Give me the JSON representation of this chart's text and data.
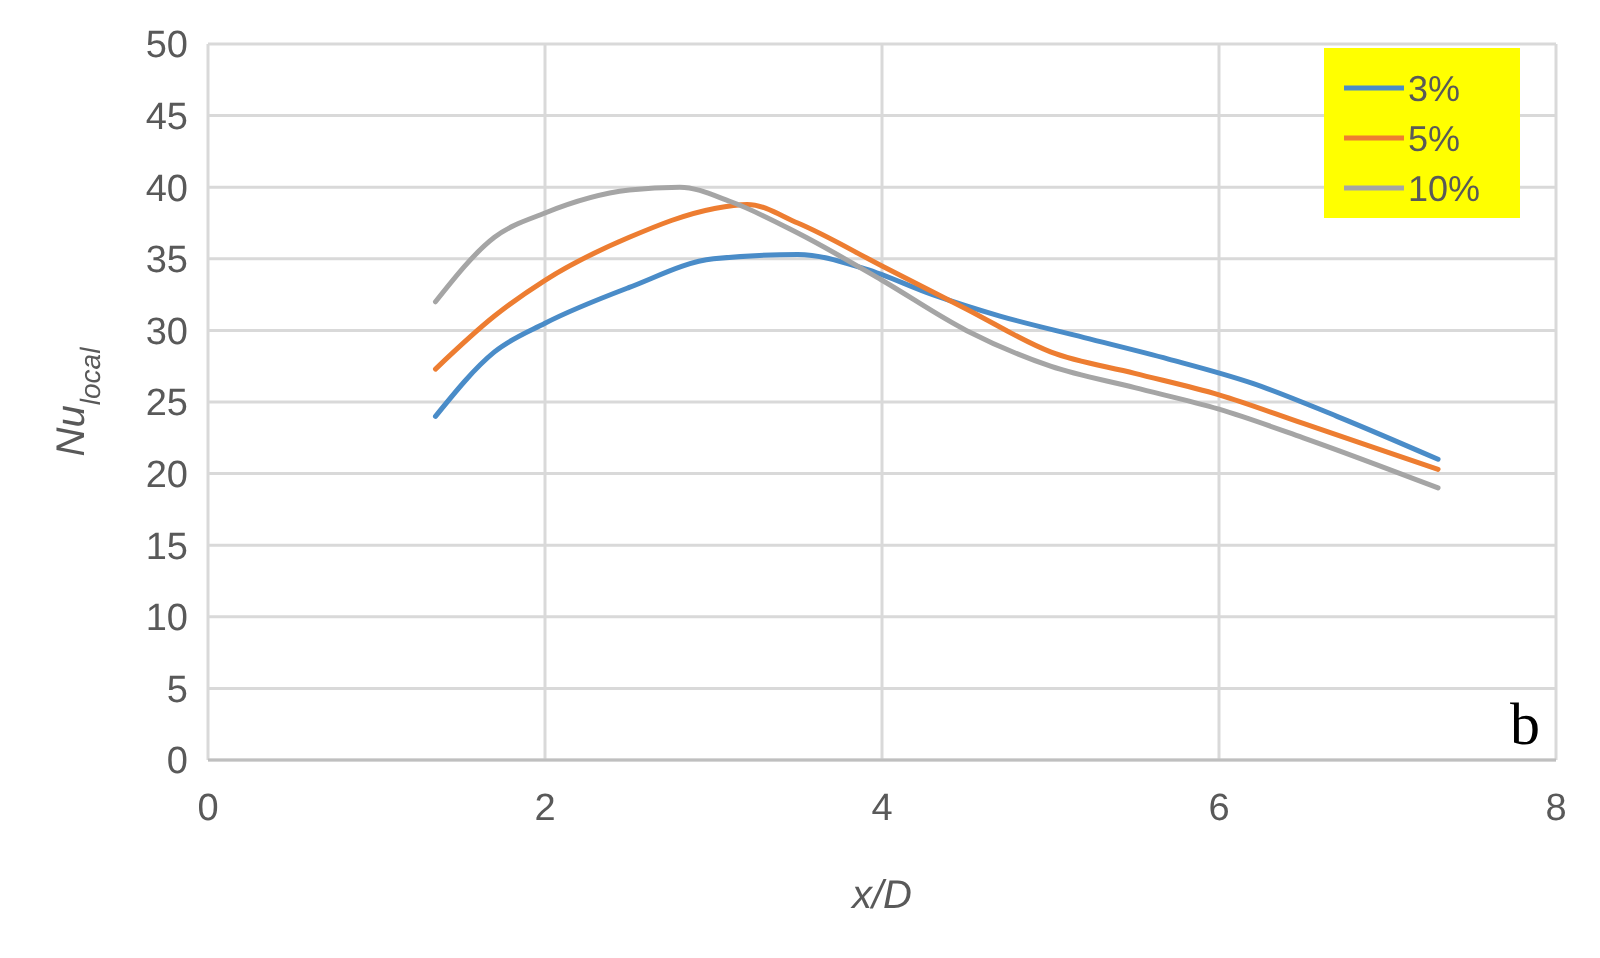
{
  "chart_data": {
    "type": "line",
    "xlabel": "x/D",
    "ylabel": "Nu$_{local}$",
    "xlim": [
      0,
      8
    ],
    "xticks": [
      0,
      2,
      4,
      6,
      8
    ],
    "ylim": [
      0,
      50
    ],
    "yticks": [
      0,
      5,
      10,
      15,
      20,
      25,
      30,
      35,
      40,
      45,
      50
    ],
    "grid": true,
    "legend": "top right",
    "annotations": [
      "b"
    ],
    "series": [
      {
        "name": "3%",
        "color": "#4a8cc8",
        "x": [
          1.35,
          1.7,
          2,
          2.5,
          3,
          3.5,
          3.9,
          4.3,
          4.7,
          5.2,
          5.7,
          6.2,
          6.7,
          7.3
        ],
        "values": [
          24,
          28.5,
          30.5,
          33,
          35,
          35.3,
          34.3,
          32.5,
          31,
          29.5,
          28,
          26.3,
          24,
          21
        ]
      },
      {
        "name": "5%",
        "color": "#ed7d31",
        "x": [
          1.35,
          1.7,
          2,
          2.5,
          3,
          3.2,
          3.5,
          4,
          4.5,
          5,
          5.5,
          6,
          6.5,
          7.3
        ],
        "values": [
          27.3,
          31,
          33.5,
          36.5,
          38.5,
          38.8,
          37.5,
          34.5,
          31.5,
          28.5,
          27,
          25.5,
          23.5,
          20.3
        ]
      },
      {
        "name": "10%",
        "color": "#a5a5a5",
        "x": [
          1.35,
          1.7,
          2,
          2.5,
          2.8,
          3.1,
          3.5,
          4,
          4.5,
          5,
          5.5,
          6,
          6.5,
          7.3
        ],
        "values": [
          32,
          36.5,
          38.2,
          39.8,
          40,
          39,
          36.8,
          33.5,
          30,
          27.5,
          26,
          24.5,
          22.5,
          19
        ]
      }
    ]
  }
}
